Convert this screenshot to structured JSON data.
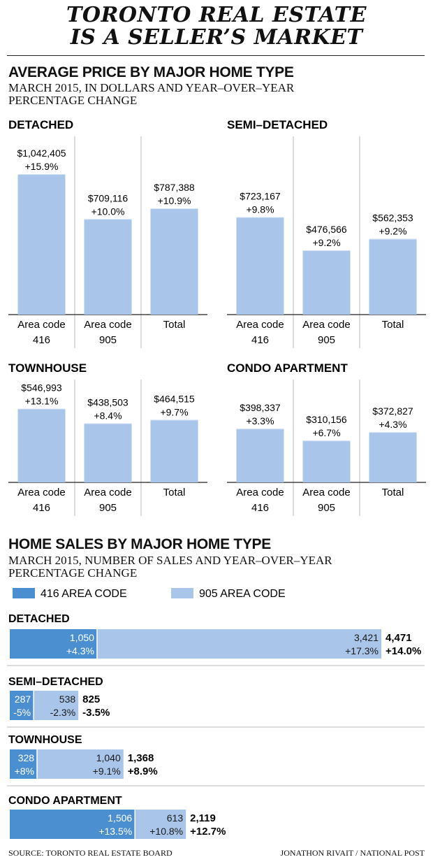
{
  "title_lines": [
    "TORONTO REAL ESTATE",
    "IS A SELLER’S MARKET"
  ],
  "price_section": {
    "heading": "AVERAGE PRICE BY MAJOR HOME TYPE",
    "subtitle_lines": [
      "MARCH 2015, IN DOLLARS AND YEAR–OVER–YEAR",
      "PERCENTAGE CHANGE"
    ]
  },
  "sales_section": {
    "heading": "HOME SALES BY MAJOR HOME TYPE",
    "subtitle_lines": [
      "MARCH 2015, NUMBER OF SALES AND YEAR–OVER–YEAR",
      "PERCENTAGE CHANGE"
    ],
    "legend": [
      {
        "label": "416 AREA CODE",
        "color": "#4b8fd1"
      },
      {
        "label": "905 AREA CODE",
        "color": "#a9c5ea"
      }
    ]
  },
  "colors": {
    "bar": "#a9c5ea",
    "bar_top": "#d6e4f5",
    "dark": "#4b8fd1",
    "grid": "#bbbbbb"
  },
  "footer": {
    "source": "SOURCE: TORONTO REAL ESTATE BOARD",
    "credit": "JONATHON RIVAIT / NATIONAL POST"
  },
  "chart_data": [
    {
      "type": "bar",
      "title": "DETACHED",
      "categories": [
        [
          "Area code",
          "416"
        ],
        [
          "Area code",
          "905"
        ],
        [
          "Total"
        ]
      ],
      "values": [
        1042405,
        709116,
        787388
      ],
      "value_labels": [
        "$1,042,405",
        "$709,116",
        "$787,388"
      ],
      "change_labels": [
        "+15.9%",
        "+10.0%",
        "+10.9%"
      ]
    },
    {
      "type": "bar",
      "title": "SEMI–DETACHED",
      "categories": [
        [
          "Area code",
          "416"
        ],
        [
          "Area code",
          "905"
        ],
        [
          "Total"
        ]
      ],
      "values": [
        723167,
        476566,
        562353
      ],
      "value_labels": [
        "$723,167",
        "$476,566",
        "$562,353"
      ],
      "change_labels": [
        "+9.8%",
        "+9.2%",
        "+9.2%"
      ]
    },
    {
      "type": "bar",
      "title": "TOWNHOUSE",
      "categories": [
        [
          "Area code",
          "416"
        ],
        [
          "Area code",
          "905"
        ],
        [
          "Total"
        ]
      ],
      "values": [
        546993,
        438503,
        464515
      ],
      "value_labels": [
        "$546,993",
        "$438,503",
        "$464,515"
      ],
      "change_labels": [
        "+13.1%",
        "+8.4%",
        "+9.7%"
      ]
    },
    {
      "type": "bar",
      "title": "CONDO APARTMENT",
      "categories": [
        [
          "Area code",
          "416"
        ],
        [
          "Area code",
          "905"
        ],
        [
          "Total"
        ]
      ],
      "values": [
        398337,
        310156,
        372827
      ],
      "value_labels": [
        "$398,337",
        "$310,156",
        "$372,827"
      ],
      "change_labels": [
        "+3.3%",
        "+6.7%",
        "+4.3%"
      ]
    },
    {
      "type": "bar",
      "orientation": "horizontal-stacked",
      "categories": [
        "DETACHED",
        "SEMI–DETACHED",
        "TOWNHOUSE",
        "CONDO APARTMENT"
      ],
      "series": [
        {
          "name": "416 AREA CODE",
          "values": [
            1050,
            287,
            328,
            1506
          ],
          "change_labels": [
            "+4.3%",
            "-5%",
            "+8%",
            "+13.5%"
          ]
        },
        {
          "name": "905 AREA CODE",
          "values": [
            3421,
            538,
            1040,
            613
          ],
          "change_labels": [
            "+17.3%",
            "-2.3%",
            "+9.1%",
            "+10.8%"
          ]
        }
      ],
      "totals": [
        4471,
        825,
        1368,
        2119
      ],
      "total_labels": [
        "4,471",
        "825",
        "1,368",
        "2,119"
      ],
      "total_change_labels": [
        "+14.0%",
        "-3.5%",
        "+8.9%",
        "+12.7%"
      ]
    }
  ]
}
